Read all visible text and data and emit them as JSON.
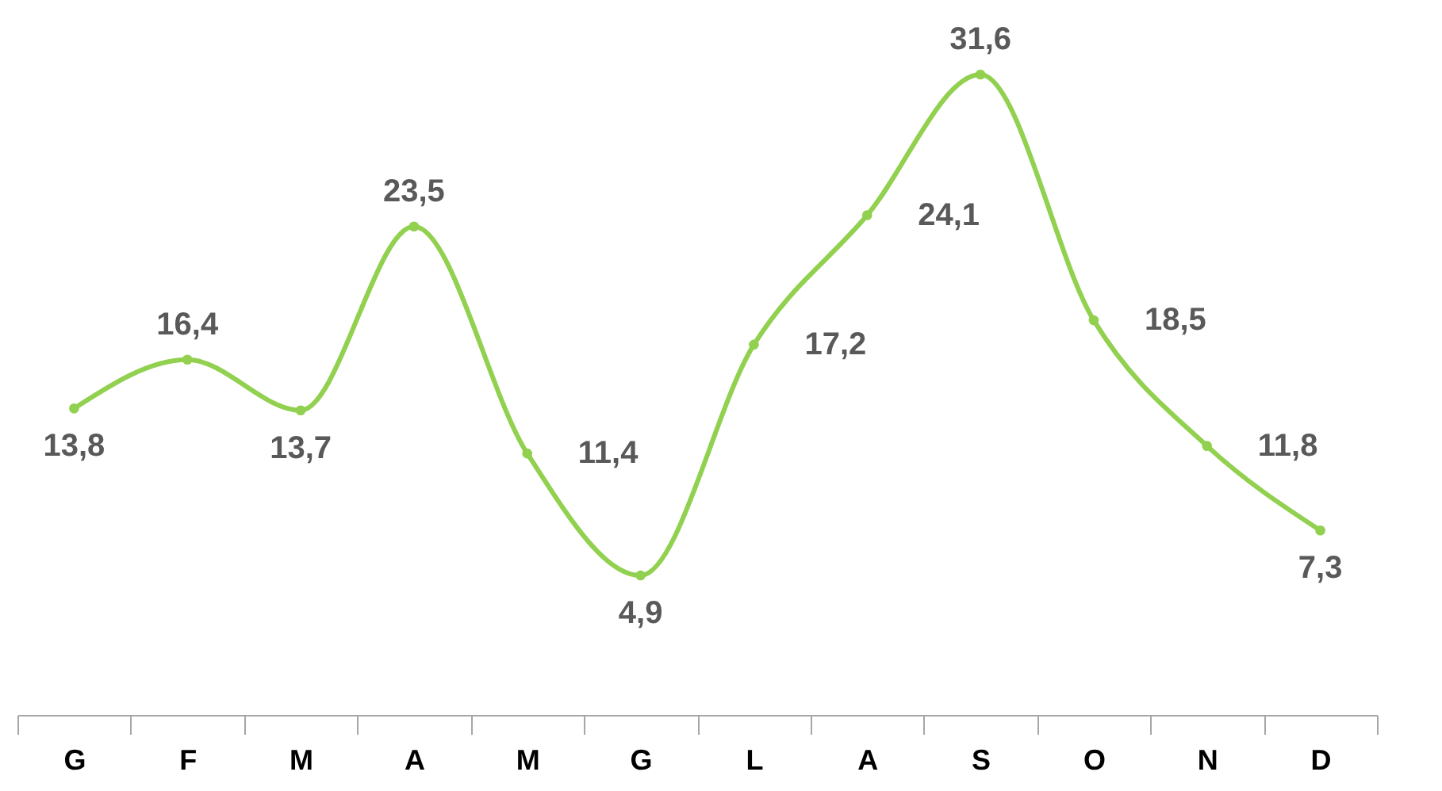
{
  "chart_data": {
    "type": "line",
    "categories": [
      "G",
      "F",
      "M",
      "A",
      "M",
      "G",
      "L",
      "A",
      "S",
      "O",
      "N",
      "D"
    ],
    "series": [
      {
        "color": "#92d050",
        "values": [
          13.8,
          16.4,
          13.7,
          23.5,
          11.4,
          4.9,
          17.2,
          24.1,
          31.6,
          18.5,
          11.8,
          7.3
        ],
        "value_labels": [
          "13,8",
          "16,4",
          "13,7",
          "23,5",
          "11,4",
          "4,9",
          "17,2",
          "24,1",
          "31,6",
          "18,5",
          "11,8",
          "7,3"
        ]
      }
    ],
    "marker": "circle",
    "grid": false,
    "tick_labels": "x"
  }
}
